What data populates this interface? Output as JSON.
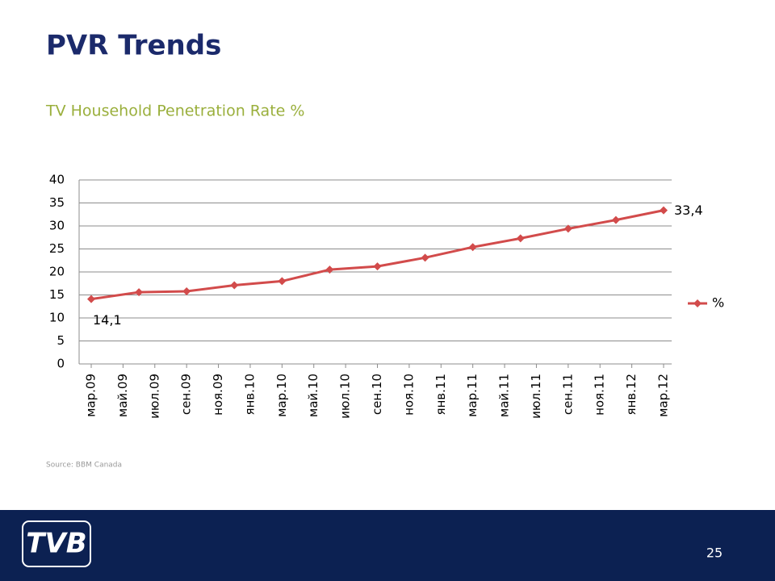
{
  "header": {
    "title": "PVR Trends"
  },
  "chart_data": {
    "type": "line",
    "title": "TV Household Penetration Rate %",
    "x": [
      "2009-03",
      "2009-06",
      "2009-09",
      "2009-12",
      "2010-03",
      "2010-06",
      "2010-09",
      "2010-12",
      "2011-03",
      "2011-06",
      "2011-09",
      "2011-12",
      "2012-03"
    ],
    "series": [
      {
        "name": "%",
        "color": "#d24b4b",
        "values": [
          14.1,
          15.6,
          15.8,
          17.1,
          18.0,
          20.5,
          21.2,
          23.1,
          25.4,
          27.3,
          29.4,
          31.3,
          33.4
        ],
        "value_labels": [
          "14,1",
          null,
          null,
          null,
          null,
          null,
          null,
          null,
          null,
          null,
          null,
          null,
          "33,4"
        ]
      }
    ],
    "xticks": [
      {
        "value": "2009-03",
        "label": "мар.09"
      },
      {
        "value": "2009-05",
        "label": "май.09"
      },
      {
        "value": "2009-07",
        "label": "июл.09"
      },
      {
        "value": "2009-09",
        "label": "сен.09"
      },
      {
        "value": "2009-11",
        "label": "ноя.09"
      },
      {
        "value": "2010-01",
        "label": "янв.10"
      },
      {
        "value": "2010-03",
        "label": "мар.10"
      },
      {
        "value": "2010-05",
        "label": "май.10"
      },
      {
        "value": "2010-07",
        "label": "июл.10"
      },
      {
        "value": "2010-09",
        "label": "сен.10"
      },
      {
        "value": "2010-11",
        "label": "ноя.10"
      },
      {
        "value": "2011-01",
        "label": "янв.11"
      },
      {
        "value": "2011-03",
        "label": "мар.11"
      },
      {
        "value": "2011-05",
        "label": "май.11"
      },
      {
        "value": "2011-07",
        "label": "июл.11"
      },
      {
        "value": "2011-09",
        "label": "сен.11"
      },
      {
        "value": "2011-11",
        "label": "ноя.11"
      },
      {
        "value": "2012-01",
        "label": "янв.12"
      },
      {
        "value": "2012-03",
        "label": "мар.12"
      }
    ],
    "ylim": [
      0,
      40
    ],
    "yticks": [
      0,
      5,
      10,
      15,
      20,
      25,
      30,
      35,
      40
    ],
    "grid": true,
    "legend": "right"
  },
  "source": "Source: BBM Canada",
  "footer": {
    "logo": "TVB",
    "page": "25"
  }
}
